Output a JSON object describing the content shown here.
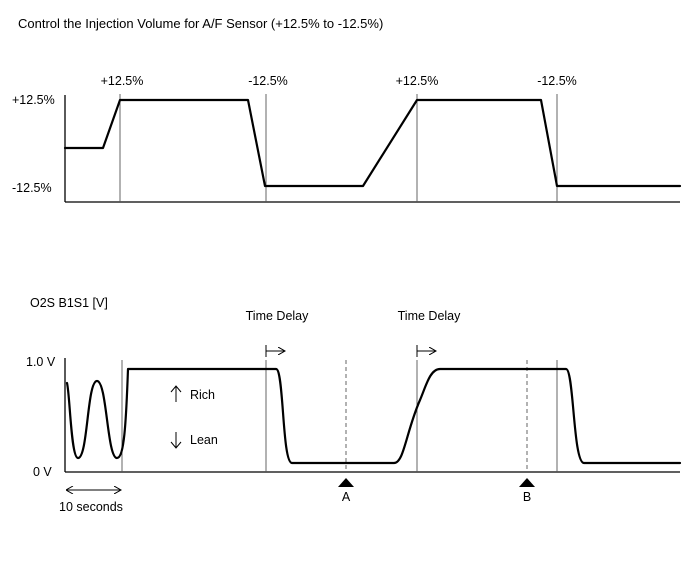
{
  "title": "Control the Injection Volume for A/F Sensor (+12.5% to -12.5%)",
  "injection_chart": {
    "y_top_label": "+12.5%",
    "y_bottom_label": "-12.5%",
    "step_labels": [
      "+12.5%",
      "-12.5%",
      "+12.5%",
      "-12.5%"
    ]
  },
  "o2s_chart": {
    "title": "O2S B1S1 [V]",
    "y_top_label": "1.0 V",
    "y_bottom_label": "0 V",
    "delay_labels": [
      "Time Delay",
      "Time Delay"
    ],
    "rich_label": "Rich",
    "lean_label": "Lean",
    "timescale_label": "10 seconds",
    "markers": [
      "A",
      "B"
    ]
  },
  "icons": {
    "rich": "arrow-up-icon",
    "lean": "arrow-down-icon",
    "marker": "triangle-up-icon",
    "delay": "arrow-right-bar-icon",
    "timescale": "double-arrow-icon"
  }
}
